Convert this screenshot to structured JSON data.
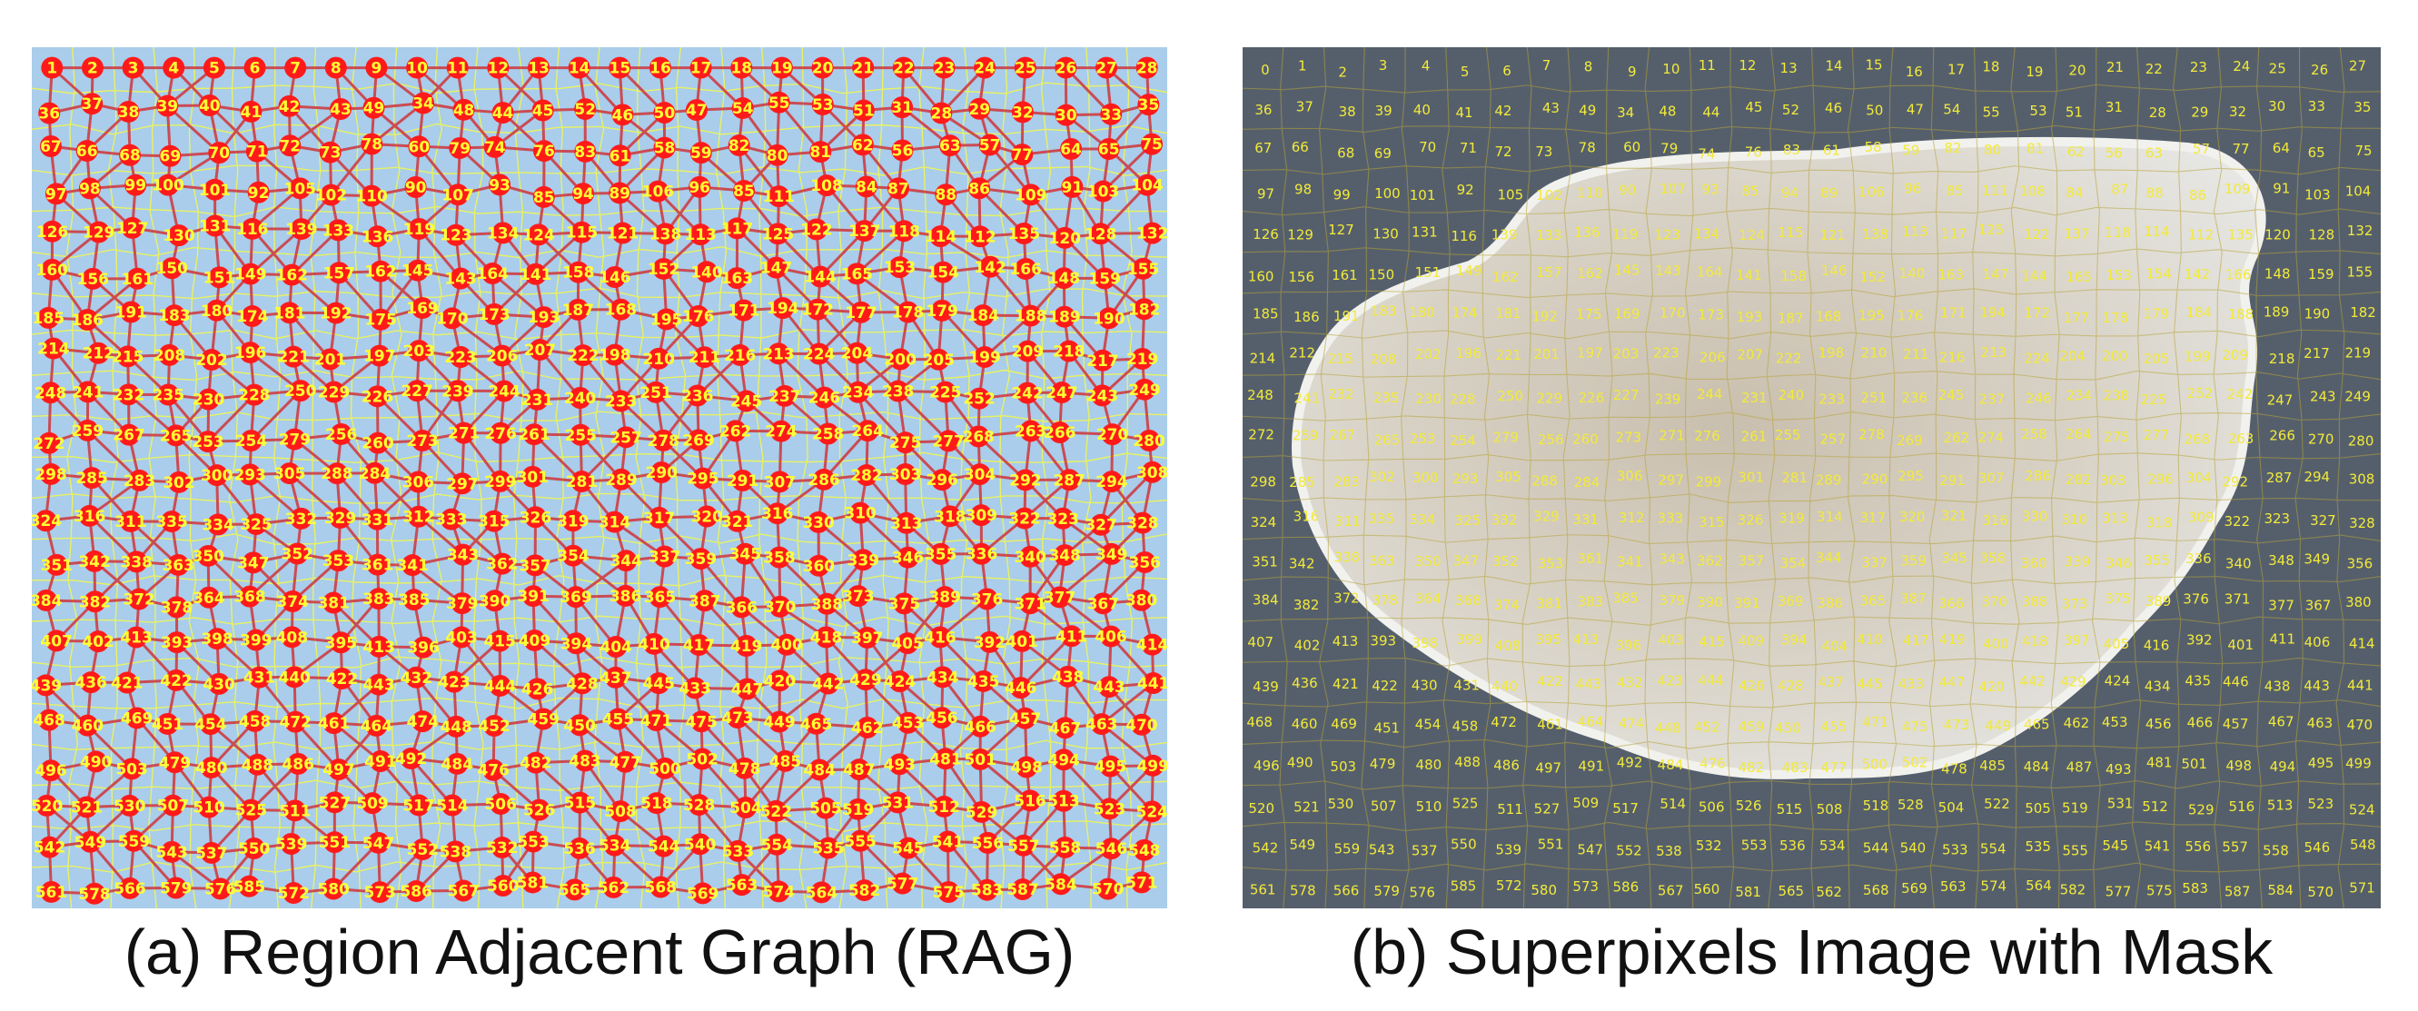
{
  "captions": {
    "a": "(a) Region Adjacent Graph (RAG)",
    "b": "(b) Superpixels Image with Mask"
  },
  "rag": {
    "top_row_labels": [
      "1",
      "2",
      "3",
      "4",
      "5",
      "6",
      "7",
      "8",
      "9",
      "10",
      "11",
      "12",
      "13",
      "14",
      "15",
      "16",
      "17",
      "18",
      "19",
      "20",
      "21",
      "22",
      "23",
      "24",
      "25",
      "26",
      "27",
      "28"
    ],
    "background_color": "#a9cdeb",
    "node_color": "#ff1a1a",
    "edge_color": "#d0353a",
    "label_color": "#ffff33"
  },
  "superpixels": {
    "rows": [
      [
        "0",
        "1",
        "2",
        "3",
        "4",
        "5",
        "6",
        "7",
        "8",
        "9",
        "10",
        "11",
        "12",
        "13",
        "14",
        "15",
        "16",
        "17",
        "18",
        "19",
        "20",
        "21",
        "22",
        "23",
        "24",
        "25",
        "26",
        "27"
      ],
      [
        "36",
        "37",
        "38",
        "39",
        "40",
        "41",
        "42",
        "43",
        "49",
        "34",
        "48",
        "44",
        "45",
        "52",
        "46",
        "50",
        "47",
        "54",
        "55",
        "53",
        "51",
        "31",
        "28",
        "29",
        "32",
        "30",
        "33",
        "35"
      ],
      [
        "67",
        "66",
        "68",
        "69",
        "70",
        "71",
        "72",
        "73",
        "78",
        "60",
        "79",
        "74",
        "76",
        "83",
        "61",
        "58",
        "59",
        "82",
        "80",
        "81",
        "62",
        "56",
        "63",
        "57",
        "77",
        "64",
        "65",
        "75"
      ],
      [
        "97",
        "98",
        "99",
        "100",
        "101",
        "92",
        "105",
        "102",
        "110",
        "90",
        "107",
        "93",
        "85",
        "94",
        "89",
        "106",
        "96",
        "85",
        "111",
        "108",
        "84",
        "87",
        "88",
        "86",
        "109",
        "91",
        "103",
        "104"
      ],
      [
        "126",
        "129",
        "127",
        "130",
        "131",
        "116",
        "139",
        "133",
        "136",
        "119",
        "123",
        "134",
        "124",
        "115",
        "121",
        "138",
        "113",
        "117",
        "125",
        "122",
        "137",
        "118",
        "114",
        "112",
        "135",
        "120",
        "128",
        "132"
      ],
      [
        "160",
        "156",
        "161",
        "150",
        "151",
        "149",
        "162",
        "157",
        "162",
        "145",
        "143",
        "164",
        "141",
        "158",
        "146",
        "152",
        "140",
        "163",
        "147",
        "144",
        "165",
        "153",
        "154",
        "142",
        "166",
        "148",
        "159",
        "155"
      ],
      [
        "185",
        "186",
        "191",
        "183",
        "180",
        "174",
        "181",
        "192",
        "175",
        "169",
        "170",
        "173",
        "193",
        "187",
        "168",
        "195",
        "176",
        "171",
        "194",
        "172",
        "177",
        "178",
        "179",
        "184",
        "188",
        "189",
        "190",
        "182"
      ],
      [
        "214",
        "212",
        "215",
        "208",
        "202",
        "196",
        "221",
        "201",
        "197",
        "203",
        "223",
        "206",
        "207",
        "222",
        "198",
        "210",
        "211",
        "216",
        "213",
        "224",
        "204",
        "200",
        "205",
        "199",
        "209",
        "218",
        "217",
        "219"
      ],
      [
        "248",
        "241",
        "232",
        "235",
        "230",
        "228",
        "250",
        "229",
        "226",
        "227",
        "239",
        "244",
        "231",
        "240",
        "233",
        "251",
        "236",
        "245",
        "237",
        "246",
        "234",
        "238",
        "225",
        "252",
        "242",
        "247",
        "243",
        "249"
      ],
      [
        "272",
        "259",
        "267",
        "265",
        "253",
        "254",
        "279",
        "256",
        "260",
        "273",
        "271",
        "276",
        "261",
        "255",
        "257",
        "278",
        "269",
        "262",
        "274",
        "258",
        "264",
        "275",
        "277",
        "268",
        "263",
        "266",
        "270",
        "280"
      ],
      [
        "298",
        "285",
        "283",
        "302",
        "300",
        "293",
        "305",
        "288",
        "284",
        "306",
        "297",
        "299",
        "301",
        "281",
        "289",
        "290",
        "295",
        "291",
        "307",
        "286",
        "282",
        "303",
        "296",
        "304",
        "292",
        "287",
        "294",
        "308"
      ],
      [
        "324",
        "316",
        "311",
        "335",
        "334",
        "325",
        "332",
        "329",
        "331",
        "312",
        "333",
        "315",
        "326",
        "319",
        "314",
        "317",
        "320",
        "321",
        "316",
        "330",
        "310",
        "313",
        "318",
        "309",
        "322",
        "323",
        "327",
        "328"
      ],
      [
        "351",
        "342",
        "338",
        "363",
        "350",
        "347",
        "352",
        "353",
        "361",
        "341",
        "343",
        "362",
        "357",
        "354",
        "344",
        "337",
        "359",
        "345",
        "358",
        "360",
        "339",
        "346",
        "355",
        "336",
        "340",
        "348",
        "349",
        "356"
      ],
      [
        "384",
        "382",
        "372",
        "378",
        "364",
        "368",
        "374",
        "381",
        "383",
        "385",
        "379",
        "390",
        "391",
        "369",
        "386",
        "365",
        "387",
        "366",
        "370",
        "388",
        "373",
        "375",
        "389",
        "376",
        "371",
        "377",
        "367",
        "380"
      ],
      [
        "407",
        "402",
        "413",
        "393",
        "398",
        "399",
        "408",
        "395",
        "413",
        "396",
        "403",
        "415",
        "409",
        "394",
        "404",
        "410",
        "417",
        "419",
        "400",
        "418",
        "397",
        "405",
        "416",
        "392",
        "401",
        "411",
        "406",
        "414"
      ],
      [
        "439",
        "436",
        "421",
        "422",
        "430",
        "431",
        "440",
        "422",
        "443",
        "432",
        "423",
        "444",
        "426",
        "428",
        "437",
        "445",
        "433",
        "447",
        "420",
        "442",
        "429",
        "424",
        "434",
        "435",
        "446",
        "438",
        "443",
        "441"
      ],
      [
        "468",
        "460",
        "469",
        "451",
        "454",
        "458",
        "472",
        "461",
        "464",
        "474",
        "448",
        "452",
        "459",
        "450",
        "455",
        "471",
        "475",
        "473",
        "449",
        "465",
        "462",
        "453",
        "456",
        "466",
        "457",
        "467",
        "463",
        "470"
      ],
      [
        "496",
        "490",
        "503",
        "479",
        "480",
        "488",
        "486",
        "497",
        "491",
        "492",
        "484",
        "476",
        "482",
        "483",
        "477",
        "500",
        "502",
        "478",
        "485",
        "484",
        "487",
        "493",
        "481",
        "501",
        "498",
        "494",
        "495",
        "499"
      ],
      [
        "520",
        "521",
        "530",
        "507",
        "510",
        "525",
        "511",
        "527",
        "509",
        "517",
        "514",
        "506",
        "526",
        "515",
        "508",
        "518",
        "528",
        "504",
        "522",
        "505",
        "519",
        "531",
        "512",
        "529",
        "516",
        "513",
        "523",
        "524"
      ],
      [
        "542",
        "549",
        "559",
        "543",
        "537",
        "550",
        "539",
        "551",
        "547",
        "552",
        "538",
        "532",
        "553",
        "536",
        "534",
        "544",
        "540",
        "533",
        "554",
        "535",
        "555",
        "545",
        "541",
        "556",
        "557",
        "558",
        "546",
        "548"
      ],
      [
        "561",
        "578",
        "566",
        "579",
        "576",
        "585",
        "572",
        "580",
        "573",
        "586",
        "567",
        "560",
        "581",
        "565",
        "562",
        "568",
        "569",
        "563",
        "574",
        "564",
        "582",
        "577",
        "575",
        "583",
        "587",
        "584",
        "570",
        "571"
      ]
    ],
    "background_color": "#555f6c",
    "mask_color": "#e6e6e3",
    "label_color": "#f2ea3a",
    "boundary_color": "#b7a437"
  }
}
